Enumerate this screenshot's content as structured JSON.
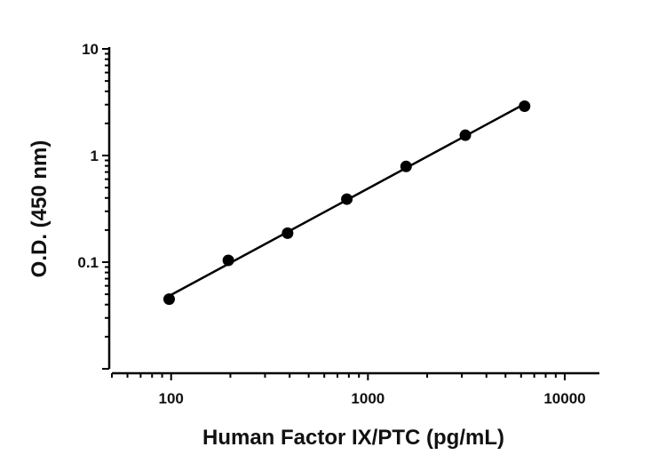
{
  "chart_data": {
    "type": "scatter",
    "title": "",
    "xlabel": "Human Factor IX/PTC (pg/mL)",
    "ylabel": "O.D. (450 nm)",
    "x_scale": "log",
    "y_scale": "log",
    "xlim": [
      50,
      15000
    ],
    "ylim": [
      0.01,
      10
    ],
    "x_ticks": [
      100,
      1000,
      10000
    ],
    "x_tick_labels": [
      "100",
      "1000",
      "10000"
    ],
    "y_ticks": [
      0.1,
      1,
      10
    ],
    "y_tick_labels": [
      "0.1",
      "1",
      "10"
    ],
    "grid": false,
    "legend": "none",
    "series": [
      {
        "x": [
          97.7,
          195.3,
          390.6,
          781.3,
          1562.5,
          3125,
          6250
        ],
        "y": [
          0.045,
          0.104,
          0.187,
          0.39,
          0.79,
          1.55,
          2.9
        ],
        "marker": "circle",
        "fit_line": true,
        "color": "#000000"
      }
    ]
  }
}
